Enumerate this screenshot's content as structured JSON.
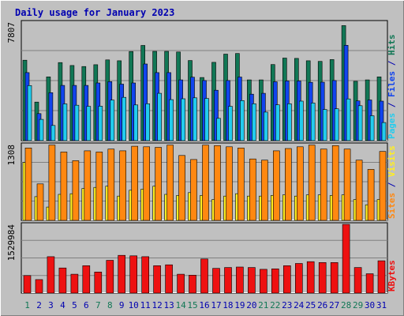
{
  "chart_data": {
    "type": "bar",
    "title": "Daily usage for January 2023",
    "categories": [
      "1",
      "2",
      "3",
      "4",
      "5",
      "6",
      "7",
      "8",
      "9",
      "10",
      "11",
      "12",
      "13",
      "14",
      "15",
      "16",
      "17",
      "18",
      "19",
      "20",
      "21",
      "22",
      "23",
      "24",
      "25",
      "26",
      "27",
      "28",
      "29",
      "30",
      "31"
    ],
    "weekend_days": [
      "1",
      "7",
      "8",
      "14",
      "15",
      "21",
      "22",
      "28",
      "29"
    ],
    "colors": {
      "title": "#0000b0",
      "hits": "#117755",
      "files": "#1144ee",
      "pages": "#22ccee",
      "visits": "#ffee22",
      "sites": "#ff8811",
      "kbytes": "#ee1111",
      "weekday_label": "#0000b0",
      "weekend_label": "#117755"
    },
    "panels": [
      {
        "id": "top",
        "ymax_label": "7807",
        "ylim": [
          0,
          7807
        ],
        "side_label": [
          {
            "text": "Pages",
            "color": "#22ccee"
          },
          {
            "text": " / ",
            "color": "#0000b0"
          },
          {
            "text": "Files",
            "color": "#1144ee"
          },
          {
            "text": " / ",
            "color": "#0000b0"
          },
          {
            "text": "Hits",
            "color": "#117755"
          }
        ],
        "series": [
          {
            "name": "Hits",
            "color": "#117755",
            "values": [
              5300,
              2540,
              4200,
              5140,
              4950,
              4880,
              5000,
              5320,
              5260,
              5870,
              6270,
              5880,
              5880,
              5840,
              5280,
              4160,
              5160,
              5700,
              5740,
              4000,
              4000,
              5010,
              5440,
              5420,
              5260,
              5220,
              5340,
              7580,
              3910,
              4000,
              4200
            ]
          },
          {
            "name": "Files",
            "color": "#1144ee",
            "values": [
              4480,
              1780,
              3160,
              3640,
              3640,
              3640,
              3800,
              3890,
              3720,
              3800,
              5050,
              4480,
              4480,
              4000,
              4180,
              3960,
              3320,
              3960,
              4190,
              3060,
              3120,
              3880,
              3930,
              3930,
              3840,
              3850,
              3960,
              6280,
              2620,
              2680,
              2600
            ]
          },
          {
            "name": "Pages",
            "color": "#22ccee",
            "values": [
              3630,
              1400,
              1000,
              2420,
              2330,
              2260,
              2270,
              2670,
              2850,
              2350,
              2430,
              3120,
              2700,
              2760,
              2820,
              2780,
              1470,
              2260,
              2640,
              2430,
              1880,
              2360,
              2430,
              2600,
              2480,
              2050,
              2100,
              2750,
              2300,
              1640,
              1190
            ]
          }
        ]
      },
      {
        "id": "middle",
        "ymax_label": "1308",
        "ylim": [
          0,
          1308
        ],
        "side_label": [
          {
            "text": "Sites",
            "color": "#ff8811"
          },
          {
            "text": " / ",
            "color": "#0000b0"
          },
          {
            "text": "Visits",
            "color": "#ffee22"
          }
        ],
        "series": [
          {
            "name": "Visits",
            "color": "#ffee22",
            "values": [
              1000,
              410,
              230,
              450,
              460,
              550,
              570,
              590,
              420,
              520,
              540,
              590,
              450,
              430,
              480,
              430,
              360,
              420,
              460,
              420,
              420,
              430,
              440,
              420,
              440,
              440,
              430,
              440,
              360,
              270,
              360
            ]
          },
          {
            "name": "Sites",
            "color": "#ff8811",
            "values": [
              1250,
              630,
              1300,
              1180,
              1030,
              1200,
              1180,
              1230,
              1200,
              1280,
              1270,
              1260,
              1300,
              1120,
              1050,
              1300,
              1290,
              1270,
              1250,
              1060,
              1040,
              1200,
              1240,
              1270,
              1300,
              1230,
              1290,
              1230,
              1040,
              880,
              1190
            ]
          }
        ]
      },
      {
        "id": "bottom",
        "ymax_label": "1529984",
        "ylim": [
          0,
          1529984
        ],
        "side_label": [
          {
            "text": "KBytes",
            "color": "#ee1111"
          }
        ],
        "series": [
          {
            "name": "KBytes",
            "color": "#ee1111",
            "values": [
              390000,
              300000,
              810000,
              560000,
              420000,
              610000,
              470000,
              730000,
              840000,
              830000,
              810000,
              610000,
              630000,
              420000,
              400000,
              760000,
              550000,
              570000,
              580000,
              570000,
              530000,
              540000,
              610000,
              660000,
              700000,
              680000,
              680000,
              1560000,
              570000,
              430000,
              720000
            ]
          }
        ]
      }
    ]
  }
}
